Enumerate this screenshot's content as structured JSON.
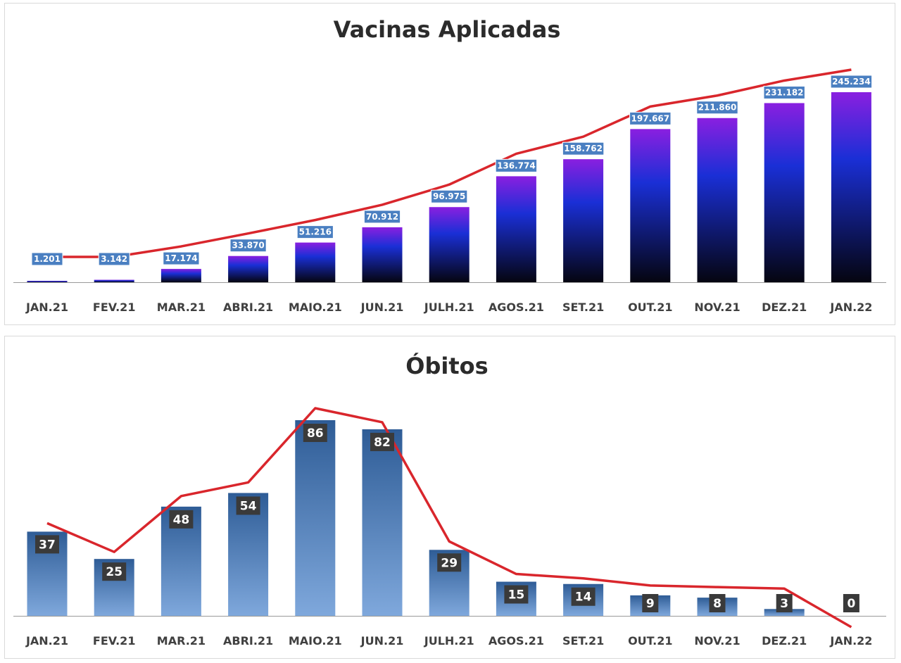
{
  "chart_data": [
    {
      "type": "bar",
      "title": "Vacinas Aplicadas",
      "categories": [
        "JAN.21",
        "FEV.21",
        "MAR.21",
        "ABRI.21",
        "MAIO.21",
        "JUN.21",
        "JULH.21",
        "AGOS.21",
        "SET.21",
        "OUT.21",
        "NOV.21",
        "DEZ.21",
        "JAN.22"
      ],
      "values": [
        1201,
        3142,
        17174,
        33870,
        51216,
        70912,
        96975,
        136774,
        158762,
        197667,
        211860,
        231182,
        245234
      ],
      "value_labels": [
        "1.201",
        "3.142",
        "17.174",
        "33.870",
        "51.216",
        "70.912",
        "96.975",
        "136.774",
        "158.762",
        "197.667",
        "211.860",
        "231.182",
        "245.234"
      ],
      "trend_line": true,
      "colors": {
        "bar_top": "#8a1fe0",
        "bar_mid": "#1a2fd6",
        "bar_bottom": "#050510",
        "label_bg": "#4a7fc1",
        "line": "#d9262c"
      }
    },
    {
      "type": "bar",
      "title": "Óbitos",
      "categories": [
        "JAN.21",
        "FEV.21",
        "MAR.21",
        "ABRI.21",
        "MAIO.21",
        "JUN.21",
        "JULH.21",
        "AGOS.21",
        "SET.21",
        "OUT.21",
        "NOV.21",
        "DEZ.21",
        "JAN.22"
      ],
      "values": [
        37,
        25,
        48,
        54,
        86,
        82,
        29,
        15,
        14,
        9,
        8,
        3,
        0
      ],
      "value_labels": [
        "37",
        "25",
        "48",
        "54",
        "86",
        "82",
        "29",
        "15",
        "14",
        "9",
        "8",
        "3",
        "0"
      ],
      "trend_line": true,
      "colors": {
        "bar_top": "#2e5c96",
        "bar_bottom": "#7fa8dc",
        "label_bg": "#3a3a3a",
        "line": "#d9262c"
      }
    }
  ]
}
